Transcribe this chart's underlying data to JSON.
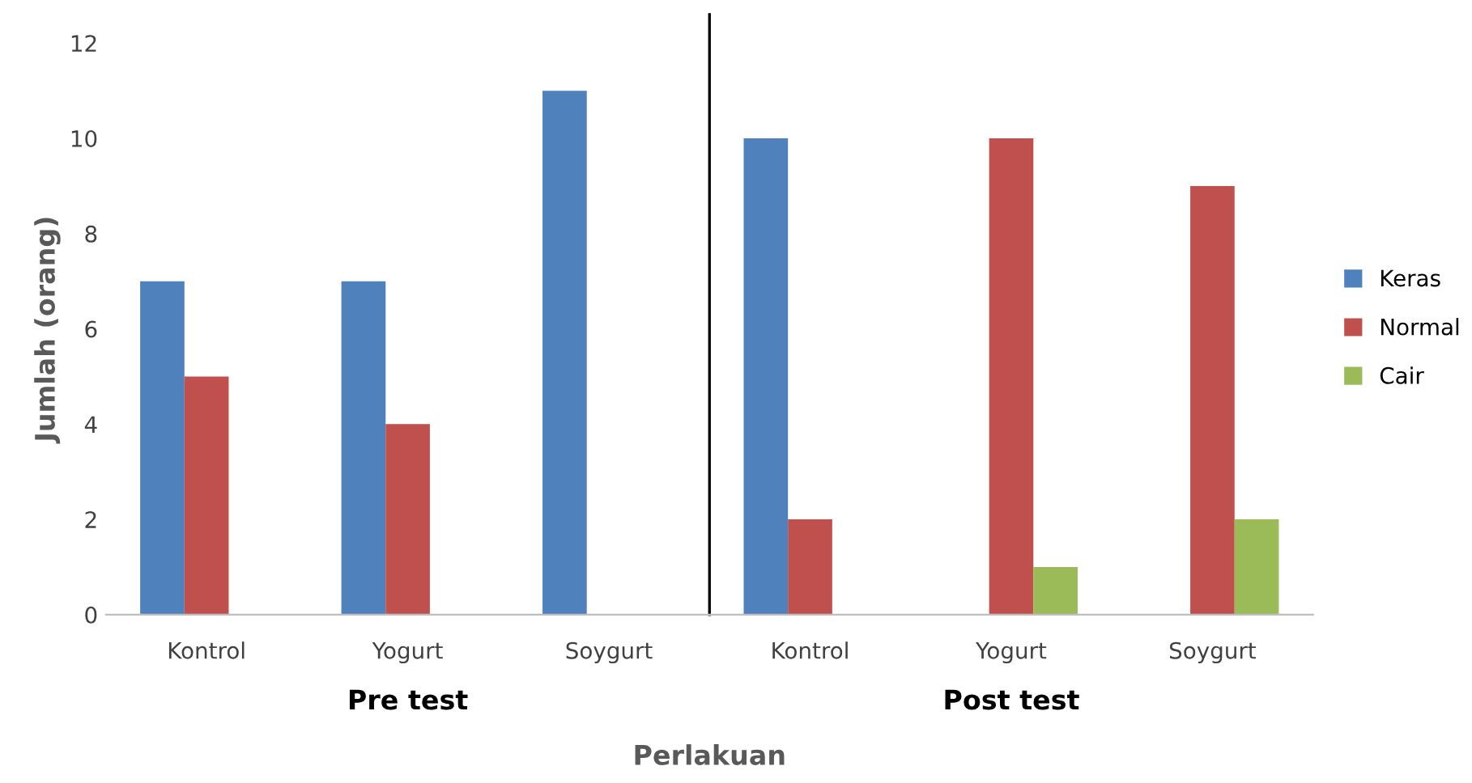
{
  "chart_data": {
    "type": "bar",
    "xlabel": "Perlakuan",
    "ylabel": "Jumlah (orang)",
    "categories": [
      "Kontrol",
      "Yogurt",
      "Soygurt",
      "Kontrol",
      "Yogurt",
      "Soygurt"
    ],
    "series": [
      {
        "name": "Keras",
        "color": "#4f81bd",
        "values": [
          7,
          7,
          11,
          10,
          0,
          0
        ]
      },
      {
        "name": "Normal",
        "color": "#c0504d",
        "values": [
          5,
          4,
          0,
          2,
          10,
          9
        ]
      },
      {
        "name": "Cair",
        "color": "#9bbb59",
        "values": [
          0,
          0,
          0,
          0,
          1,
          2
        ]
      }
    ],
    "annotations": [
      "Pre test",
      "Post test"
    ],
    "ylim": [
      0,
      12
    ],
    "yticks": [
      0,
      2,
      4,
      6,
      8,
      10,
      12
    ],
    "grid": false,
    "legend": "right"
  }
}
